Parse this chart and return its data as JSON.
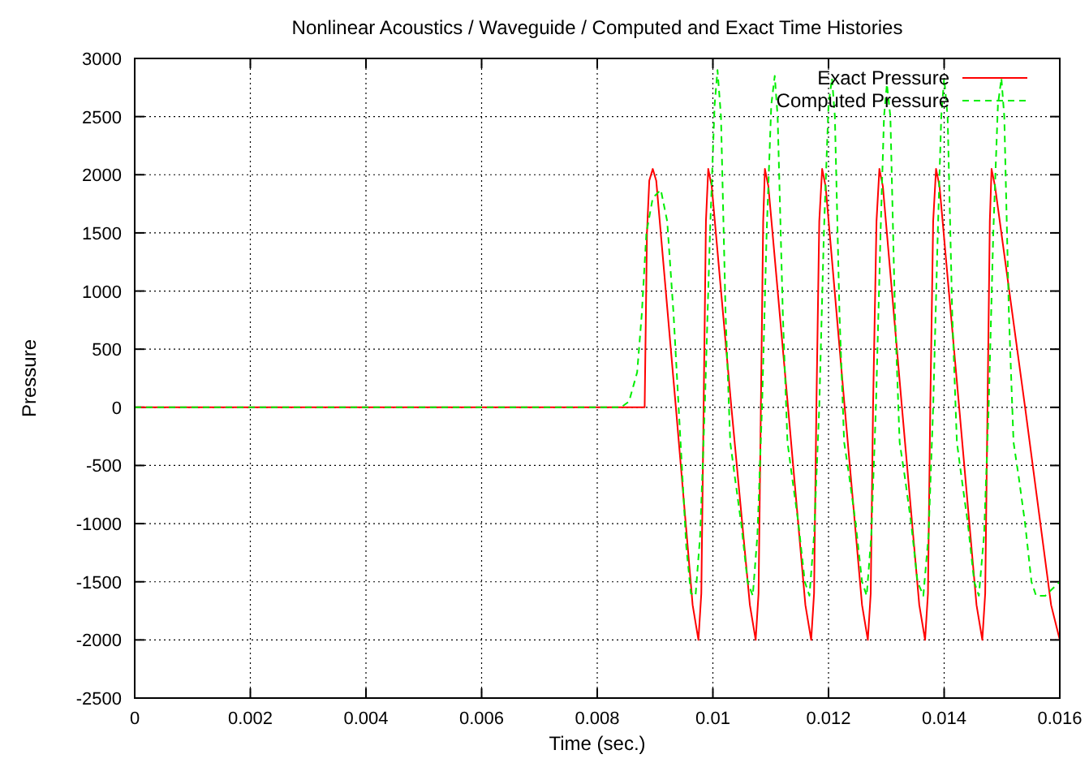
{
  "chart_data": {
    "type": "line",
    "title": "Nonlinear Acoustics / Waveguide / Computed and Exact Time Histories",
    "xlabel": "Time (sec.)",
    "ylabel": "Pressure",
    "xlim": [
      0,
      0.016
    ],
    "xticks": [
      0,
      0.002,
      0.004,
      0.006,
      0.008,
      0.01,
      0.012,
      0.014,
      0.016
    ],
    "ylim": [
      -2500,
      3000
    ],
    "yticks": [
      -2500,
      -2000,
      -1500,
      -1000,
      -500,
      0,
      500,
      1000,
      1500,
      2000,
      2500,
      3000
    ],
    "grid": true,
    "legend": "top right",
    "marker": "none",
    "series": [
      {
        "name": "Exact Pressure",
        "color": "#ff0000",
        "line_style": "solid",
        "x": [
          0,
          0.00882,
          0.00886,
          0.0089,
          0.00896,
          0.00902,
          0.00936,
          0.00965,
          0.00975,
          0.0098,
          0.00984,
          0.00988,
          0.00992,
          0.00998,
          0.01032,
          0.01064,
          0.01074,
          0.01079,
          0.01083,
          0.01087,
          0.0109,
          0.01096,
          0.0113,
          0.0116,
          0.0117,
          0.01175,
          0.01179,
          0.01184,
          0.01189,
          0.01195,
          0.01228,
          0.01258,
          0.01268,
          0.01273,
          0.01277,
          0.01283,
          0.01288,
          0.01294,
          0.01327,
          0.01357,
          0.01367,
          0.01372,
          0.01376,
          0.01381,
          0.01386,
          0.01392,
          0.01426,
          0.01456,
          0.01466,
          0.01471,
          0.01475,
          0.01479,
          0.01482,
          0.01488,
          0.0154,
          0.01585,
          0.016
        ],
        "values": [
          0,
          0,
          1500,
          1950,
          2050,
          1950,
          0,
          -1700,
          -2000,
          -1600,
          0,
          1600,
          2050,
          1900,
          0,
          -1700,
          -2000,
          -1600,
          0,
          1600,
          2050,
          1900,
          0,
          -1700,
          -2000,
          -1600,
          0,
          1600,
          2050,
          1900,
          0,
          -1700,
          -2000,
          -1600,
          0,
          1600,
          2050,
          1900,
          0,
          -1700,
          -2000,
          -1600,
          0,
          1600,
          2050,
          1900,
          0,
          -1700,
          -2000,
          -1600,
          0,
          1600,
          2050,
          1900,
          0,
          -1700,
          -2000
        ]
      },
      {
        "name": "Computed Pressure",
        "color": "#00ee00",
        "line_style": "dashed",
        "x": [
          0,
          0.00841,
          0.00855,
          0.00869,
          0.00877,
          0.00885,
          0.00896,
          0.0091,
          0.00921,
          0.00932,
          0.00943,
          0.00954,
          0.00962,
          0.0097,
          0.00978,
          0.00986,
          0.00995,
          0.01003,
          0.01008,
          0.01014,
          0.01022,
          0.0103,
          0.01038,
          0.01049,
          0.0106,
          0.01069,
          0.01077,
          0.01085,
          0.01093,
          0.01101,
          0.01107,
          0.01112,
          0.01121,
          0.01129,
          0.01137,
          0.01148,
          0.01159,
          0.01167,
          0.01175,
          0.01184,
          0.01192,
          0.012,
          0.01206,
          0.01211,
          0.01219,
          0.01227,
          0.01236,
          0.01247,
          0.01258,
          0.01266,
          0.01274,
          0.01282,
          0.0129,
          0.01296,
          0.01301,
          0.01307,
          0.01315,
          0.01323,
          0.01332,
          0.01343,
          0.01354,
          0.01364,
          0.01373,
          0.01381,
          0.01389,
          0.01395,
          0.014,
          0.01406,
          0.01414,
          0.01422,
          0.0143,
          0.01441,
          0.01452,
          0.0146,
          0.01469,
          0.01477,
          0.01485,
          0.01493,
          0.01499,
          0.01504,
          0.01512,
          0.0152,
          0.01529,
          0.0154,
          0.01551,
          0.01559,
          0.01575,
          0.016
        ],
        "values": [
          0,
          0,
          50,
          300,
          800,
          1500,
          1800,
          1870,
          1600,
          800,
          -200,
          -1200,
          -1600,
          -1620,
          -1100,
          0,
          1500,
          2600,
          2900,
          2500,
          800,
          -300,
          -600,
          -1000,
          -1500,
          -1620,
          -1100,
          0,
          1500,
          2600,
          2850,
          2500,
          800,
          -300,
          -600,
          -1000,
          -1500,
          -1620,
          -1100,
          0,
          1500,
          2600,
          2830,
          2500,
          800,
          -300,
          -600,
          -1000,
          -1500,
          -1620,
          -1100,
          0,
          1500,
          2500,
          2780,
          2500,
          800,
          -300,
          -600,
          -1000,
          -1500,
          -1620,
          -1100,
          0,
          1500,
          2500,
          2830,
          2500,
          800,
          -300,
          -600,
          -1000,
          -1500,
          -1620,
          -1100,
          0,
          1500,
          2600,
          2830,
          2500,
          800,
          -300,
          -600,
          -1000,
          -1500,
          -1620,
          -1620,
          -1500
        ]
      }
    ]
  }
}
